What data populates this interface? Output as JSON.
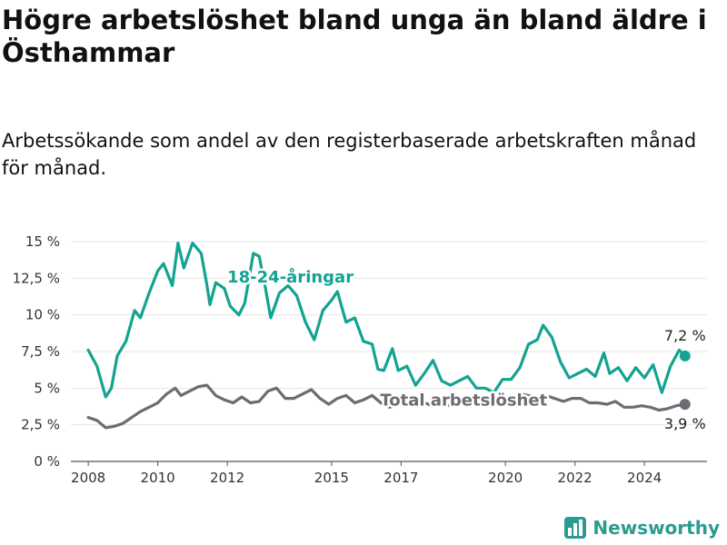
{
  "title": "Högre arbetslöshet bland unga än bland äldre i Östhammar",
  "subtitle": "Arbetssökande som andel av den registerbaserade arbetskraften månad för månad.",
  "brand": {
    "name": "Newsworthy",
    "icon": "bar-chart-logo-icon"
  },
  "chart_data": {
    "type": "line",
    "ylim": [
      0,
      15
    ],
    "xlim": [
      2007.5,
      2025.8
    ],
    "y_ticks": [
      {
        "value": 0,
        "label": "0 %"
      },
      {
        "value": 2.5,
        "label": "2,5 %"
      },
      {
        "value": 5,
        "label": "5 %"
      },
      {
        "value": 7.5,
        "label": "7,5 %"
      },
      {
        "value": 10,
        "label": "10 %"
      },
      {
        "value": 12.5,
        "label": "12,5 %"
      },
      {
        "value": 15,
        "label": "15 %"
      }
    ],
    "x_ticks": [
      "2008",
      "2010",
      "2012",
      "2015",
      "2017",
      "2020",
      "2022",
      "2024"
    ],
    "grid": true,
    "series": [
      {
        "name": "18-24-åringar",
        "color": "#13a392",
        "end_label": "7,2 %",
        "points": [
          [
            "2008-01",
            7.6
          ],
          [
            "2008-04",
            6.5
          ],
          [
            "2008-07",
            4.4
          ],
          [
            "2008-09",
            5.0
          ],
          [
            "2008-11",
            7.2
          ],
          [
            "2009-02",
            8.2
          ],
          [
            "2009-05",
            10.3
          ],
          [
            "2009-07",
            9.8
          ],
          [
            "2009-10",
            11.5
          ],
          [
            "2010-01",
            13.0
          ],
          [
            "2010-03",
            13.5
          ],
          [
            "2010-06",
            12.0
          ],
          [
            "2010-08",
            14.9
          ],
          [
            "2010-10",
            13.2
          ],
          [
            "2011-01",
            14.9
          ],
          [
            "2011-04",
            14.2
          ],
          [
            "2011-06",
            12.0
          ],
          [
            "2011-07",
            10.7
          ],
          [
            "2011-09",
            12.2
          ],
          [
            "2011-12",
            11.8
          ],
          [
            "2012-02",
            10.6
          ],
          [
            "2012-05",
            10.0
          ],
          [
            "2012-07",
            10.8
          ],
          [
            "2012-10",
            14.2
          ],
          [
            "2012-12",
            14.0
          ],
          [
            "2013-02",
            12.0
          ],
          [
            "2013-04",
            9.8
          ],
          [
            "2013-07",
            11.5
          ],
          [
            "2013-10",
            12.0
          ],
          [
            "2014-01",
            11.3
          ],
          [
            "2014-04",
            9.5
          ],
          [
            "2014-07",
            8.3
          ],
          [
            "2014-10",
            10.3
          ],
          [
            "2015-01",
            11.0
          ],
          [
            "2015-03",
            11.6
          ],
          [
            "2015-06",
            9.5
          ],
          [
            "2015-09",
            9.8
          ],
          [
            "2015-12",
            8.2
          ],
          [
            "2016-03",
            8.0
          ],
          [
            "2016-05",
            6.3
          ],
          [
            "2016-07",
            6.2
          ],
          [
            "2016-10",
            7.7
          ],
          [
            "2016-12",
            6.2
          ],
          [
            "2017-03",
            6.5
          ],
          [
            "2017-06",
            5.2
          ],
          [
            "2017-09",
            6.0
          ],
          [
            "2017-12",
            6.9
          ],
          [
            "2018-03",
            5.5
          ],
          [
            "2018-06",
            5.2
          ],
          [
            "2018-09",
            5.5
          ],
          [
            "2018-12",
            5.8
          ],
          [
            "2019-03",
            5.0
          ],
          [
            "2019-06",
            5.0
          ],
          [
            "2019-09",
            4.7
          ],
          [
            "2019-12",
            5.6
          ],
          [
            "2020-03",
            5.6
          ],
          [
            "2020-06",
            6.4
          ],
          [
            "2020-09",
            8.0
          ],
          [
            "2020-12",
            8.3
          ],
          [
            "2021-02",
            9.3
          ],
          [
            "2021-05",
            8.5
          ],
          [
            "2021-08",
            6.8
          ],
          [
            "2021-11",
            5.7
          ],
          [
            "2022-02",
            6.0
          ],
          [
            "2022-05",
            6.3
          ],
          [
            "2022-08",
            5.8
          ],
          [
            "2022-11",
            7.4
          ],
          [
            "2023-01",
            6.0
          ],
          [
            "2023-04",
            6.4
          ],
          [
            "2023-07",
            5.5
          ],
          [
            "2023-10",
            6.4
          ],
          [
            "2024-01",
            5.7
          ],
          [
            "2024-04",
            6.6
          ],
          [
            "2024-07",
            4.7
          ],
          [
            "2024-10",
            6.5
          ],
          [
            "2025-01",
            7.6
          ],
          [
            "2025-03",
            7.2
          ]
        ]
      },
      {
        "name": "Total arbetslöshet",
        "color": "#6e6c72",
        "end_label": "3,9 %",
        "points": [
          [
            "2008-01",
            3.0
          ],
          [
            "2008-04",
            2.8
          ],
          [
            "2008-07",
            2.3
          ],
          [
            "2008-10",
            2.4
          ],
          [
            "2009-01",
            2.6
          ],
          [
            "2009-04",
            3.0
          ],
          [
            "2009-07",
            3.4
          ],
          [
            "2009-10",
            3.7
          ],
          [
            "2010-01",
            4.0
          ],
          [
            "2010-04",
            4.6
          ],
          [
            "2010-07",
            5.0
          ],
          [
            "2010-09",
            4.5
          ],
          [
            "2010-12",
            4.8
          ],
          [
            "2011-03",
            5.1
          ],
          [
            "2011-06",
            5.2
          ],
          [
            "2011-09",
            4.5
          ],
          [
            "2011-12",
            4.2
          ],
          [
            "2012-03",
            4.0
          ],
          [
            "2012-06",
            4.4
          ],
          [
            "2012-09",
            4.0
          ],
          [
            "2012-12",
            4.1
          ],
          [
            "2013-03",
            4.8
          ],
          [
            "2013-06",
            5.0
          ],
          [
            "2013-09",
            4.3
          ],
          [
            "2013-12",
            4.3
          ],
          [
            "2014-03",
            4.6
          ],
          [
            "2014-06",
            4.9
          ],
          [
            "2014-09",
            4.3
          ],
          [
            "2014-12",
            3.9
          ],
          [
            "2015-03",
            4.3
          ],
          [
            "2015-06",
            4.5
          ],
          [
            "2015-09",
            4.0
          ],
          [
            "2015-12",
            4.2
          ],
          [
            "2016-03",
            4.5
          ],
          [
            "2016-06",
            4.0
          ],
          [
            "2016-09",
            3.7
          ],
          [
            "2016-12",
            3.9
          ],
          [
            "2017-03",
            4.3
          ],
          [
            "2017-06",
            4.2
          ],
          [
            "2017-09",
            4.0
          ],
          [
            "2017-12",
            3.8
          ],
          [
            "2018-03",
            3.9
          ],
          [
            "2018-06",
            3.8
          ],
          [
            "2018-09",
            3.9
          ],
          [
            "2018-12",
            4.0
          ],
          [
            "2019-03",
            4.0
          ],
          [
            "2019-06",
            4.1
          ],
          [
            "2019-09",
            4.0
          ],
          [
            "2019-12",
            4.2
          ],
          [
            "2020-03",
            4.3
          ],
          [
            "2020-06",
            4.6
          ],
          [
            "2020-09",
            4.5
          ],
          [
            "2020-12",
            4.4
          ],
          [
            "2021-03",
            4.5
          ],
          [
            "2021-06",
            4.3
          ],
          [
            "2021-09",
            4.1
          ],
          [
            "2021-12",
            4.3
          ],
          [
            "2022-03",
            4.3
          ],
          [
            "2022-06",
            4.0
          ],
          [
            "2022-09",
            4.0
          ],
          [
            "2022-12",
            3.9
          ],
          [
            "2023-03",
            4.1
          ],
          [
            "2023-06",
            3.7
          ],
          [
            "2023-09",
            3.7
          ],
          [
            "2023-12",
            3.8
          ],
          [
            "2024-03",
            3.7
          ],
          [
            "2024-06",
            3.5
          ],
          [
            "2024-09",
            3.6
          ],
          [
            "2024-12",
            3.8
          ],
          [
            "2025-03",
            3.9
          ]
        ]
      }
    ]
  }
}
